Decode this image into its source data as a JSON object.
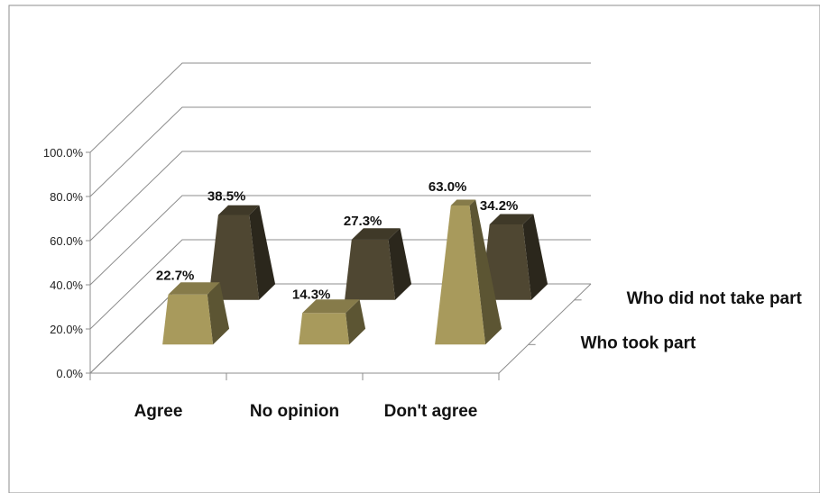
{
  "chart_data": {
    "type": "bar",
    "style": "3d-pyramid",
    "categories": [
      "Agree",
      "No opinion",
      "Don't agree"
    ],
    "series": [
      {
        "name": "Who took part",
        "values": [
          22.7,
          14.3,
          63.0
        ],
        "labels": [
          "22.7%",
          "14.3%",
          "63.0%"
        ],
        "color": "#a89a5c"
      },
      {
        "name": "Who did not take part",
        "values": [
          38.5,
          27.3,
          34.2
        ],
        "labels": [
          "38.5%",
          "27.3%",
          "34.2%"
        ],
        "color": "#4f4732"
      }
    ],
    "y_ticks": [
      "0.0%",
      "20.0%",
      "40.0%",
      "60.0%",
      "80.0%",
      "100.0%"
    ],
    "ylim": [
      0,
      100
    ],
    "grid": true,
    "title": "",
    "xlabel": "",
    "ylabel": ""
  }
}
